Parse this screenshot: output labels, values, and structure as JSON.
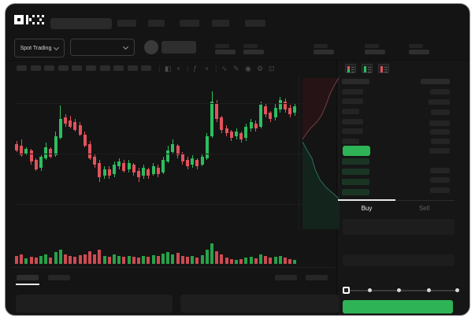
{
  "brand": {
    "logo_text": "OKX"
  },
  "colors": {
    "window_bg": "#141414",
    "panel_bg": "#161616",
    "green": "#2ebd5f",
    "red": "#e2525c",
    "green_dim": "#27a249",
    "red_dim": "#cf4a52",
    "accent_green": "#2eb356"
  },
  "top_nav": {
    "search_value": "",
    "nav_item_count": 5
  },
  "market_bar": {
    "market_type_label": "Spot Trading",
    "pair_select_value": "",
    "stat_group_count": 5
  },
  "chart_toolbar": {
    "timeframe_slot_count": 10,
    "icons": [
      {
        "name": "divider",
        "glyph": "|"
      },
      {
        "name": "candle-style-icon",
        "glyph": "◧"
      },
      {
        "name": "chevron-down-icon",
        "glyph": "∨"
      },
      {
        "name": "divider",
        "glyph": "|"
      },
      {
        "name": "indicators-icon",
        "glyph": "ƒ"
      },
      {
        "name": "chevron-down-icon",
        "glyph": "∨"
      },
      {
        "name": "divider",
        "glyph": "|"
      },
      {
        "name": "line-tool-icon",
        "glyph": "∿"
      },
      {
        "name": "draw-icon",
        "glyph": "✎"
      },
      {
        "name": "screenshot-icon",
        "glyph": "◉"
      },
      {
        "name": "settings-icon",
        "glyph": "⚙"
      },
      {
        "name": "fullscreen-icon",
        "glyph": "⊡"
      }
    ]
  },
  "order_book": {
    "view_icons": [
      {
        "name": "order-book-combined-icon",
        "top": "#e2525c",
        "bottom": "#2ebd5f"
      },
      {
        "name": "order-book-bids-icon",
        "top": "#2ebd5f",
        "bottom": "#2ebd5f"
      },
      {
        "name": "order-book-asks-icon",
        "top": "#e2525c",
        "bottom": "#e2525c"
      }
    ],
    "header_bar_count": 2,
    "rows_top_left_widths": [
      27,
      27,
      22,
      27,
      27,
      22
    ],
    "rows_top_right_widths": [
      25,
      27,
      24,
      26,
      25,
      24,
      26
    ],
    "last_price_bar": {
      "color": "#2eb356"
    },
    "rows_bottom_left_green_widths": [
      35,
      35,
      35,
      35
    ],
    "rows_bottom_right_widths": [
      25,
      25,
      25
    ]
  },
  "trade_panel": {
    "tabs": [
      {
        "label": "Buy",
        "active": true
      },
      {
        "label": "Sell",
        "active": false
      }
    ],
    "field_count": 2,
    "slider": {
      "percent": 0,
      "stop_count": 5
    },
    "submit_button": {
      "label": "",
      "color": "#2eb356"
    }
  },
  "bottom_bar": {
    "tab_count": 2,
    "active_tab_index": 0,
    "action_count": 2,
    "panel_count": 2
  },
  "chart_data": {
    "type": "candlestick",
    "title": "",
    "x_axis_labels_visible": false,
    "y_axis_labels_visible": false,
    "units": "relative-scale (no numeric axis labels rendered in screenshot)",
    "candles": [
      [
        76,
        80,
        66,
        68
      ],
      [
        74,
        82,
        60,
        62
      ],
      [
        64,
        72,
        62,
        70
      ],
      [
        68,
        70,
        50,
        54
      ],
      [
        56,
        58,
        42,
        44
      ],
      [
        46,
        62,
        42,
        60
      ],
      [
        58,
        78,
        56,
        72
      ],
      [
        70,
        72,
        58,
        60
      ],
      [
        62,
        92,
        60,
        86
      ],
      [
        84,
        125,
        82,
        108
      ],
      [
        110,
        114,
        98,
        102
      ],
      [
        106,
        112,
        96,
        98
      ],
      [
        104,
        108,
        92,
        94
      ],
      [
        100,
        104,
        86,
        88
      ],
      [
        88,
        92,
        72,
        74
      ],
      [
        76,
        80,
        56,
        58
      ],
      [
        60,
        64,
        46,
        50
      ],
      [
        52,
        56,
        28,
        34
      ],
      [
        36,
        48,
        32,
        44
      ],
      [
        44,
        48,
        32,
        36
      ],
      [
        38,
        54,
        34,
        50
      ],
      [
        48,
        58,
        44,
        54
      ],
      [
        52,
        56,
        40,
        42
      ],
      [
        44,
        56,
        40,
        52
      ],
      [
        50,
        52,
        36,
        40
      ],
      [
        42,
        46,
        28,
        34
      ],
      [
        36,
        50,
        32,
        46
      ],
      [
        44,
        46,
        32,
        36
      ],
      [
        38,
        52,
        36,
        48
      ],
      [
        46,
        50,
        34,
        38
      ],
      [
        40,
        60,
        38,
        56
      ],
      [
        54,
        74,
        52,
        68
      ],
      [
        66,
        82,
        64,
        76
      ],
      [
        74,
        76,
        58,
        62
      ],
      [
        64,
        66,
        50,
        54
      ],
      [
        56,
        60,
        44,
        48
      ],
      [
        50,
        62,
        46,
        58
      ],
      [
        56,
        58,
        44,
        48
      ],
      [
        50,
        64,
        48,
        60
      ],
      [
        58,
        90,
        56,
        86
      ],
      [
        86,
        143,
        84,
        130
      ],
      [
        128,
        132,
        104,
        108
      ],
      [
        110,
        112,
        90,
        94
      ],
      [
        96,
        100,
        86,
        90
      ],
      [
        92,
        94,
        80,
        84
      ],
      [
        86,
        96,
        82,
        92
      ],
      [
        90,
        92,
        78,
        82
      ],
      [
        84,
        102,
        80,
        98
      ],
      [
        96,
        108,
        92,
        104
      ],
      [
        102,
        106,
        92,
        96
      ],
      [
        98,
        130,
        96,
        126
      ],
      [
        124,
        128,
        110,
        114
      ],
      [
        116,
        118,
        104,
        108
      ],
      [
        110,
        128,
        106,
        122
      ],
      [
        120,
        136,
        116,
        132
      ],
      [
        130,
        134,
        116,
        120
      ],
      [
        122,
        126,
        110,
        114
      ],
      [
        116,
        128,
        112,
        124
      ]
    ],
    "volume": [
      10,
      12,
      7,
      9,
      8,
      10,
      12,
      8,
      15,
      18,
      12,
      10,
      9,
      11,
      12,
      16,
      12,
      18,
      10,
      9,
      12,
      10,
      9,
      10,
      9,
      8,
      10,
      9,
      11,
      10,
      13,
      15,
      12,
      14,
      10,
      9,
      10,
      8,
      11,
      18,
      26,
      16,
      12,
      8,
      6,
      5,
      6,
      8,
      9,
      7,
      12,
      10,
      8,
      9,
      10,
      8,
      6,
      5
    ],
    "depth_overlay": {
      "asks_line": [
        [
          50,
          3
        ],
        [
          44,
          13
        ],
        [
          39,
          23
        ],
        [
          34,
          37
        ],
        [
          28,
          51
        ],
        [
          22,
          59
        ],
        [
          14,
          67
        ],
        [
          8,
          75
        ],
        [
          4,
          81
        ]
      ],
      "bids_line": [
        [
          4,
          84
        ],
        [
          10,
          95
        ],
        [
          16,
          105
        ],
        [
          20,
          119
        ],
        [
          26,
          132
        ],
        [
          34,
          142
        ],
        [
          42,
          149
        ],
        [
          50,
          156
        ]
      ],
      "asks_fill": "#251316",
      "bids_fill": "#12241c",
      "asks_stroke": "#7a3b40",
      "bids_stroke": "#2e6e5e"
    }
  }
}
